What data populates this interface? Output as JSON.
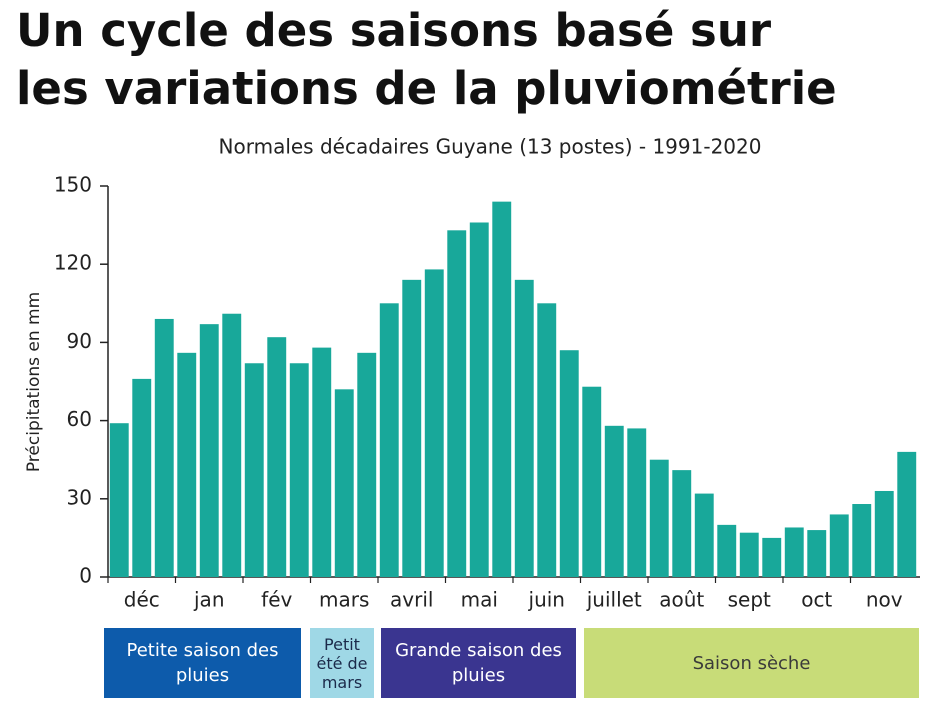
{
  "title_lines": [
    "Un cycle des saisons basé sur",
    "les variations de la pluviométrie"
  ],
  "chart_data": {
    "type": "bar",
    "subtitle": "Normales décadaires Guyane (13 postes) - 1991-2020",
    "y_label": "Précipitations en mm",
    "categories": [
      null,
      "déc",
      null,
      null,
      "jan",
      null,
      null,
      "fév",
      null,
      null,
      "mars",
      null,
      null,
      "avril",
      null,
      null,
      "mai",
      null,
      null,
      "juin",
      null,
      null,
      "juillet",
      null,
      null,
      "août",
      null,
      null,
      "sept",
      null,
      null,
      "oct",
      null,
      null,
      "nov",
      null
    ],
    "values": [
      59,
      76,
      99,
      86,
      97,
      101,
      82,
      92,
      82,
      88,
      72,
      86,
      105,
      114,
      118,
      133,
      136,
      144,
      114,
      105,
      87,
      73,
      58,
      57,
      45,
      41,
      32,
      20,
      17,
      15,
      19,
      18,
      24,
      28,
      33,
      48
    ],
    "color": "#18a89a",
    "ylim": [
      0,
      150
    ],
    "yticks": [
      0,
      30,
      60,
      90,
      120,
      150
    ],
    "grid": false
  },
  "seasons": [
    {
      "label": "Petite saison des pluies",
      "color": "#0d5bab",
      "text_color": "#ffffff"
    },
    {
      "label": "Petit été de mars",
      "color": "#9fd8e6",
      "text_color": "#1b2a4a"
    },
    {
      "label": "Grande saison des pluies",
      "color": "#3a3590",
      "text_color": "#ffffff"
    },
    {
      "label": "Saison sèche",
      "color": "#c8dc78",
      "text_color": "#3a3a3a"
    }
  ]
}
